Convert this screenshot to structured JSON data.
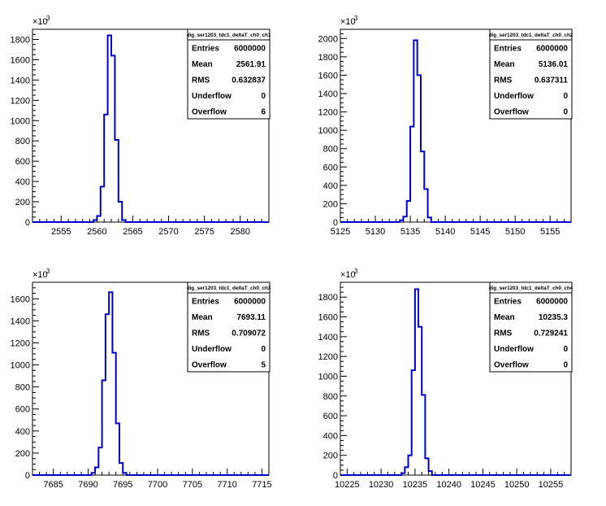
{
  "chart_data": [
    {
      "type": "histogram",
      "title": "",
      "xlabel": "",
      "ylabel": "",
      "ymultiplier_label": "×10",
      "ymultiplier_exp": "3",
      "xlim": [
        2551,
        2584
      ],
      "ylim": [
        0,
        1900
      ],
      "xticks": [
        2555,
        2560,
        2565,
        2570,
        2575,
        2580
      ],
      "yticks": [
        0,
        200,
        400,
        600,
        800,
        1000,
        1200,
        1400,
        1600,
        1800
      ],
      "bin_width": 0.5,
      "bins": [
        {
          "x": 2559.5,
          "y": 20
        },
        {
          "x": 2560.0,
          "y": 60
        },
        {
          "x": 2560.5,
          "y": 350
        },
        {
          "x": 2561.0,
          "y": 1060
        },
        {
          "x": 2561.5,
          "y": 1840
        },
        {
          "x": 2562.0,
          "y": 1640
        },
        {
          "x": 2562.5,
          "y": 810
        },
        {
          "x": 2563.0,
          "y": 200
        },
        {
          "x": 2563.5,
          "y": 20
        }
      ],
      "stats": {
        "name": "dig_ser1203_tdc1_deltaT_ch0_ch1",
        "rows": [
          {
            "label": "Entries",
            "value": "6000000"
          },
          {
            "label": "Mean",
            "value": "2561.91"
          },
          {
            "label": "RMS",
            "value": "0.632837"
          },
          {
            "label": "Underflow",
            "value": "0"
          },
          {
            "label": "Overflow",
            "value": "6"
          }
        ]
      }
    },
    {
      "type": "histogram",
      "title": "",
      "xlabel": "",
      "ylabel": "",
      "ymultiplier_label": "×10",
      "ymultiplier_exp": "3",
      "xlim": [
        5125,
        5158
      ],
      "ylim": [
        0,
        2100
      ],
      "xticks": [
        5125,
        5130,
        5135,
        5140,
        5145,
        5150,
        5155
      ],
      "yticks": [
        0,
        200,
        400,
        600,
        800,
        1000,
        1200,
        1400,
        1600,
        1800,
        2000
      ],
      "bin_width": 0.5,
      "bins": [
        {
          "x": 5133.5,
          "y": 20
        },
        {
          "x": 5134.0,
          "y": 60
        },
        {
          "x": 5134.5,
          "y": 230
        },
        {
          "x": 5135.0,
          "y": 1040
        },
        {
          "x": 5135.5,
          "y": 1980
        },
        {
          "x": 5136.0,
          "y": 1600
        },
        {
          "x": 5136.5,
          "y": 770
        },
        {
          "x": 5137.0,
          "y": 360
        },
        {
          "x": 5137.5,
          "y": 50
        }
      ],
      "stats": {
        "name": "dig_ser1203_tdc1_deltaT_ch0_ch2",
        "rows": [
          {
            "label": "Entries",
            "value": "6000000"
          },
          {
            "label": "Mean",
            "value": "5136.01"
          },
          {
            "label": "RMS",
            "value": "0.637311"
          },
          {
            "label": "Underflow",
            "value": "0"
          },
          {
            "label": "Overflow",
            "value": "0"
          }
        ]
      }
    },
    {
      "type": "histogram",
      "title": "",
      "xlabel": "",
      "ylabel": "",
      "ymultiplier_label": "×10",
      "ymultiplier_exp": "3",
      "xlim": [
        7682,
        7716
      ],
      "ylim": [
        0,
        1750
      ],
      "xticks": [
        7685,
        7690,
        7695,
        7700,
        7705,
        7710,
        7715
      ],
      "yticks": [
        0,
        200,
        400,
        600,
        800,
        1000,
        1200,
        1400,
        1600
      ],
      "bin_width": 0.5,
      "bins": [
        {
          "x": 7690.5,
          "y": 20
        },
        {
          "x": 7691.0,
          "y": 70
        },
        {
          "x": 7691.5,
          "y": 250
        },
        {
          "x": 7692.0,
          "y": 860
        },
        {
          "x": 7692.5,
          "y": 1460
        },
        {
          "x": 7693.0,
          "y": 1660
        },
        {
          "x": 7693.5,
          "y": 1110
        },
        {
          "x": 7694.0,
          "y": 470
        },
        {
          "x": 7694.5,
          "y": 110
        },
        {
          "x": 7695.0,
          "y": 20
        }
      ],
      "stats": {
        "name": "dig_ser1203_tdc1_deltaT_ch0_ch3",
        "rows": [
          {
            "label": "Entries",
            "value": "6000000"
          },
          {
            "label": "Mean",
            "value": "7693.11"
          },
          {
            "label": "RMS",
            "value": "0.709072"
          },
          {
            "label": "Underflow",
            "value": "0"
          },
          {
            "label": "Overflow",
            "value": "5"
          }
        ]
      }
    },
    {
      "type": "histogram",
      "title": "",
      "xlabel": "",
      "ylabel": "",
      "ymultiplier_label": "×10",
      "ymultiplier_exp": "3",
      "xlim": [
        10224,
        10258
      ],
      "ylim": [
        0,
        1950
      ],
      "xticks": [
        10225,
        10230,
        10235,
        10240,
        10245,
        10250,
        10255
      ],
      "yticks": [
        0,
        200,
        400,
        600,
        800,
        1000,
        1200,
        1400,
        1600,
        1800
      ],
      "bin_width": 0.5,
      "bins": [
        {
          "x": 10233.0,
          "y": 20
        },
        {
          "x": 10233.5,
          "y": 80
        },
        {
          "x": 10234.0,
          "y": 200
        },
        {
          "x": 10234.5,
          "y": 1060
        },
        {
          "x": 10235.0,
          "y": 1880
        },
        {
          "x": 10235.5,
          "y": 1500
        },
        {
          "x": 10236.0,
          "y": 810
        },
        {
          "x": 10236.5,
          "y": 170
        },
        {
          "x": 10237.0,
          "y": 40
        }
      ],
      "stats": {
        "name": "dig_ser1203_tdc1_deltaT_ch0_ch4",
        "rows": [
          {
            "label": "Entries",
            "value": "6000000"
          },
          {
            "label": "Mean",
            "value": "10235.3"
          },
          {
            "label": "RMS",
            "value": "0.729241"
          },
          {
            "label": "Underflow",
            "value": "0"
          },
          {
            "label": "Overflow",
            "value": "0"
          }
        ]
      }
    }
  ],
  "colors": {
    "line": "#0000cc",
    "axis": "#000000",
    "background": "#ffffff"
  }
}
